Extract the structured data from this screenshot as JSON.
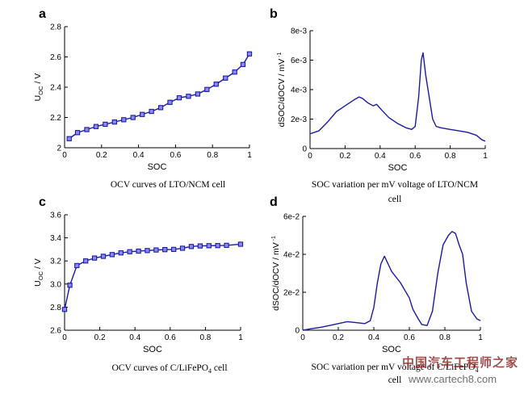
{
  "colors": {
    "line": "#1a1aa6",
    "marker_fill": "#8c8cf0",
    "axis": "#000000"
  },
  "watermark": {
    "line1": "中国汽车工程师之家",
    "line2": "www.cartech8.com"
  },
  "chart_data": [
    {
      "panel": "a",
      "type": "line",
      "markers": true,
      "caption": "OCV  curves  of  LTO/NCM  cell",
      "xlabel": "SOC",
      "ylabel": "U_OC / V",
      "xlim": [
        0,
        1
      ],
      "ylim": [
        2.0,
        2.8
      ],
      "xticks": [
        0,
        0.2,
        0.4,
        0.6,
        0.8,
        1
      ],
      "xtick_labels": [
        "0",
        "0.2",
        "0.4",
        "0.6",
        "0.8",
        "1"
      ],
      "yticks": [
        2.0,
        2.2,
        2.4,
        2.6,
        2.8
      ],
      "ytick_labels": [
        "2",
        "2.2",
        "2.4",
        "2.6",
        "2.8"
      ],
      "x": [
        0.025,
        0.07,
        0.12,
        0.17,
        0.22,
        0.27,
        0.32,
        0.37,
        0.42,
        0.47,
        0.52,
        0.57,
        0.62,
        0.67,
        0.72,
        0.77,
        0.82,
        0.87,
        0.92,
        0.965,
        1.0
      ],
      "y": [
        2.06,
        2.1,
        2.12,
        2.14,
        2.155,
        2.17,
        2.185,
        2.2,
        2.22,
        2.24,
        2.265,
        2.3,
        2.33,
        2.34,
        2.355,
        2.385,
        2.42,
        2.46,
        2.5,
        2.55,
        2.62
      ]
    },
    {
      "panel": "b",
      "type": "line",
      "markers": false,
      "caption": "SOC variation per mV voltage of LTO/NCM",
      "caption_line2": "cell",
      "xlabel": "SOC",
      "ylabel": "dSOC/dOCV  /  mV",
      "ylabel_sup": "-1",
      "xlim": [
        0,
        1
      ],
      "ylim": [
        0,
        0.008
      ],
      "xticks": [
        0,
        0.2,
        0.4,
        0.6,
        0.8,
        1
      ],
      "xtick_labels": [
        "0",
        "0.2",
        "0.4",
        "0.6",
        "0.8",
        "1"
      ],
      "yticks": [
        0,
        0.002,
        0.004,
        0.006,
        0.008
      ],
      "ytick_labels": [
        "0",
        "2e-3",
        "4e-3",
        "6e-3",
        "8e-3"
      ],
      "x": [
        0.0,
        0.05,
        0.1,
        0.15,
        0.2,
        0.25,
        0.28,
        0.3,
        0.33,
        0.36,
        0.38,
        0.41,
        0.45,
        0.5,
        0.55,
        0.58,
        0.6,
        0.62,
        0.635,
        0.645,
        0.66,
        0.68,
        0.7,
        0.72,
        0.75,
        0.8,
        0.85,
        0.9,
        0.95,
        0.98,
        1.0
      ],
      "y": [
        0.001,
        0.0012,
        0.0018,
        0.0025,
        0.0029,
        0.0033,
        0.0035,
        0.0034,
        0.0031,
        0.0029,
        0.003,
        0.0026,
        0.0021,
        0.0017,
        0.0014,
        0.0013,
        0.0015,
        0.0035,
        0.006,
        0.0065,
        0.005,
        0.0035,
        0.002,
        0.0015,
        0.0014,
        0.0013,
        0.0012,
        0.0011,
        0.0009,
        0.0006,
        0.0005
      ]
    },
    {
      "panel": "c",
      "type": "line",
      "markers": true,
      "caption": "OCV  curves  of  C/LiFePO4  cell",
      "caption_sub": "4",
      "xlabel": "SOC",
      "ylabel": "U_OC / V",
      "xlim": [
        0,
        1
      ],
      "ylim": [
        2.6,
        3.6
      ],
      "xticks": [
        0,
        0.2,
        0.4,
        0.6,
        0.8,
        1
      ],
      "xtick_labels": [
        "0",
        "0.2",
        "0.4",
        "0.6",
        "0.8",
        "1"
      ],
      "yticks": [
        2.6,
        2.8,
        3.0,
        3.2,
        3.4,
        3.6
      ],
      "ytick_labels": [
        "2.6",
        "2.8",
        "3.0",
        "3.2",
        "3.4",
        "3.6"
      ],
      "x": [
        0.0,
        0.03,
        0.07,
        0.12,
        0.17,
        0.22,
        0.27,
        0.32,
        0.37,
        0.42,
        0.47,
        0.52,
        0.57,
        0.62,
        0.67,
        0.72,
        0.77,
        0.82,
        0.87,
        0.92,
        1.0
      ],
      "y": [
        2.78,
        2.99,
        3.16,
        3.2,
        3.225,
        3.24,
        3.255,
        3.27,
        3.28,
        3.285,
        3.29,
        3.295,
        3.298,
        3.3,
        3.31,
        3.325,
        3.33,
        3.332,
        3.333,
        3.335,
        3.345
      ]
    },
    {
      "panel": "d",
      "type": "line",
      "markers": false,
      "caption": "SOC variation per mV voltage of C/LiFePO",
      "caption_sub": "4",
      "caption_line2": "cell",
      "xlabel": "SOC",
      "ylabel": "dSOC/dOCV  /  mV",
      "ylabel_sup": "-1",
      "xlim": [
        0,
        1
      ],
      "ylim": [
        0,
        0.06
      ],
      "xticks": [
        0,
        0.2,
        0.4,
        0.6,
        0.8,
        1
      ],
      "xtick_labels": [
        "0",
        "0.2",
        "0.4",
        "0.6",
        "0.8",
        "1"
      ],
      "yticks": [
        0,
        0.02,
        0.04,
        0.06
      ],
      "ytick_labels": [
        "0",
        "2e-2",
        "4e-2",
        "6e-2"
      ],
      "x": [
        0.0,
        0.05,
        0.1,
        0.15,
        0.2,
        0.25,
        0.3,
        0.35,
        0.38,
        0.4,
        0.42,
        0.44,
        0.46,
        0.48,
        0.5,
        0.55,
        0.6,
        0.62,
        0.65,
        0.67,
        0.7,
        0.73,
        0.76,
        0.79,
        0.82,
        0.84,
        0.86,
        0.88,
        0.9,
        0.92,
        0.95,
        0.98,
        1.0
      ],
      "y": [
        0.0,
        0.0008,
        0.0015,
        0.0025,
        0.0035,
        0.0045,
        0.004,
        0.0035,
        0.005,
        0.012,
        0.025,
        0.035,
        0.039,
        0.035,
        0.031,
        0.025,
        0.017,
        0.011,
        0.006,
        0.003,
        0.0025,
        0.01,
        0.03,
        0.045,
        0.05,
        0.052,
        0.051,
        0.045,
        0.04,
        0.025,
        0.01,
        0.006,
        0.005
      ]
    }
  ]
}
